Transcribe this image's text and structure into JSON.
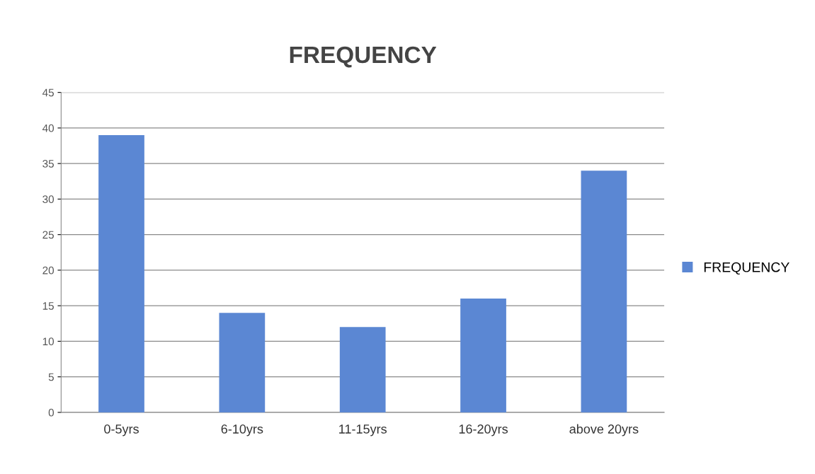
{
  "chart_data": {
    "type": "bar",
    "title": "FREQUENCY",
    "categories": [
      "0-5yrs",
      "6-10yrs",
      "11-15yrs",
      "16-20yrs",
      "above 20yrs"
    ],
    "series": [
      {
        "name": "FREQUENCY",
        "color": "#5b87d3",
        "values": [
          39,
          14,
          12,
          16,
          34
        ]
      }
    ],
    "ylim": [
      0,
      45
    ],
    "yticks": [
      0,
      5,
      10,
      15,
      20,
      25,
      30,
      35,
      40,
      45
    ],
    "grid": "y",
    "legend": "right"
  }
}
